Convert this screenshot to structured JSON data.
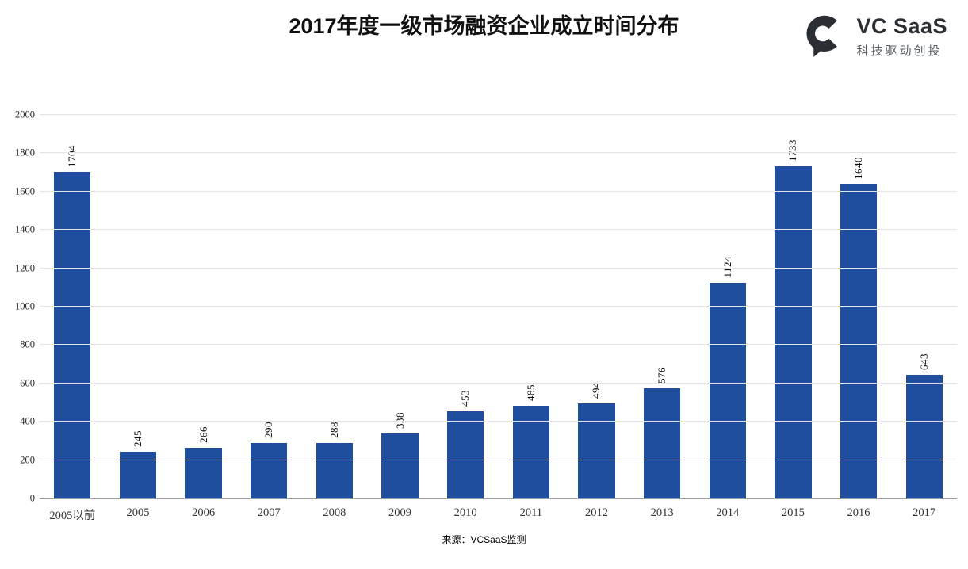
{
  "header": {
    "title": "2017年度一级市场融资企业成立时间分布",
    "logo": {
      "name": "VC SaaS",
      "tagline": "科技驱动创投",
      "mark_color": "#2b2e33"
    }
  },
  "chart_data": {
    "type": "bar",
    "title": "2017年度一级市场融资企业成立时间分布",
    "categories": [
      "2005以前",
      "2005",
      "2006",
      "2007",
      "2008",
      "2009",
      "2010",
      "2011",
      "2012",
      "2013",
      "2014",
      "2015",
      "2016",
      "2017"
    ],
    "values": [
      1704,
      245,
      266,
      290,
      288,
      338,
      453,
      485,
      494,
      576,
      1124,
      1733,
      1640,
      643
    ],
    "xlabel": "",
    "ylabel": "",
    "ylim": [
      0,
      2000
    ],
    "yticks": [
      0,
      200,
      400,
      600,
      800,
      1000,
      1200,
      1400,
      1600,
      1800,
      2000
    ],
    "grid": true,
    "legend": "none",
    "bar_color": "#1f4e9e",
    "grid_color": "#e4e4e4",
    "axis_color": "#9b9b9b",
    "value_label_rotation": "vertical"
  },
  "footer": {
    "source": "来源：VCSaaS监测"
  }
}
